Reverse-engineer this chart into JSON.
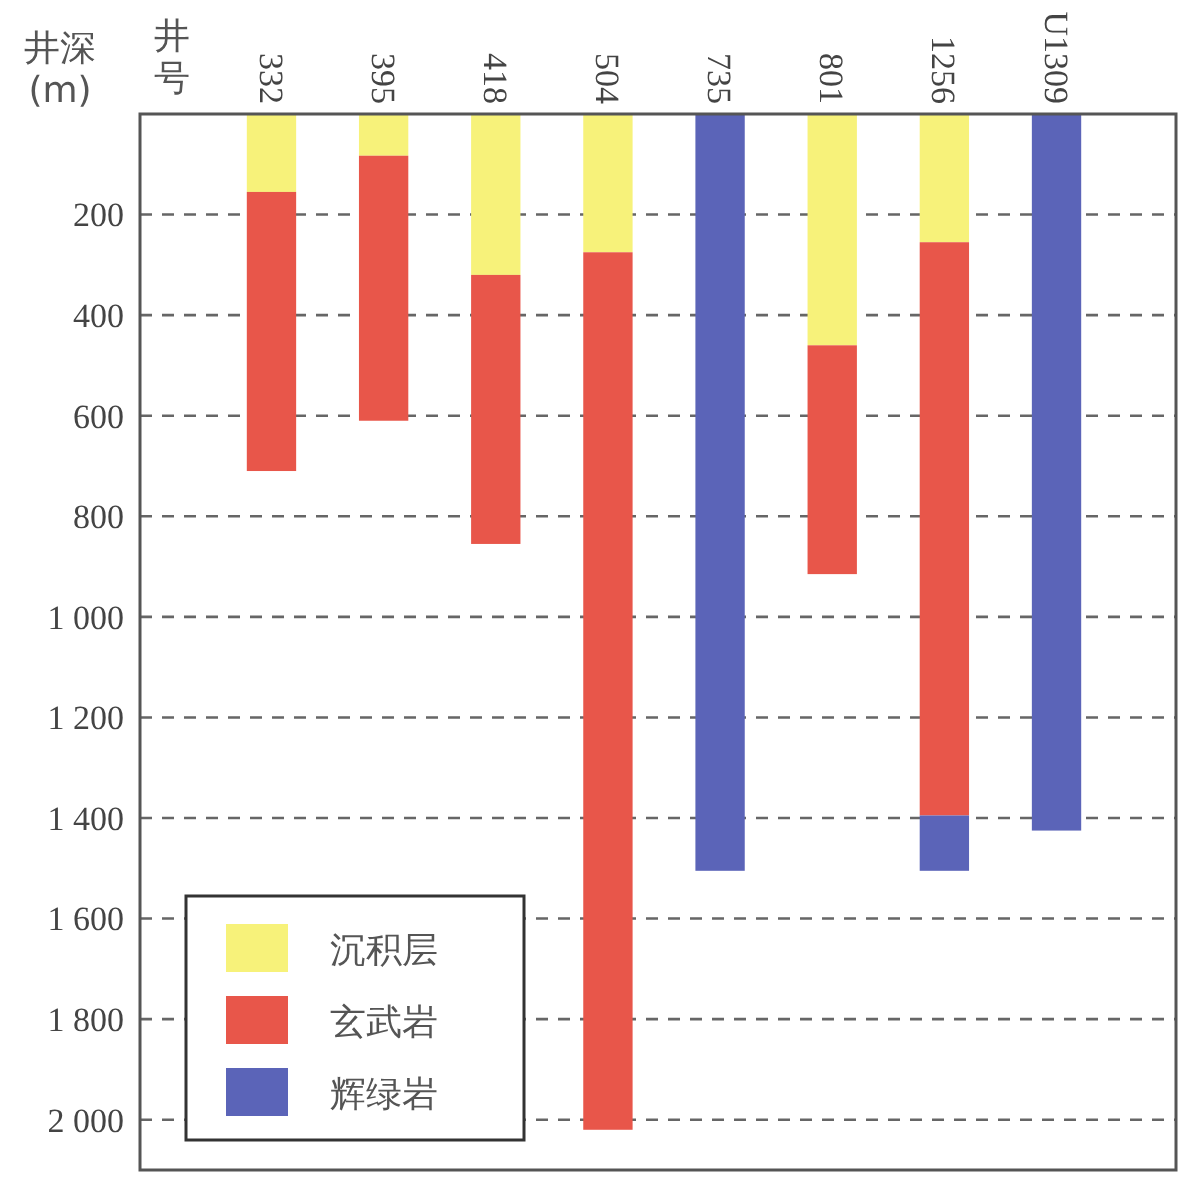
{
  "chart_data": {
    "type": "bar",
    "stacked": true,
    "xlabel": "井号",
    "ylabel": "井深\n(m)",
    "categories": [
      "332",
      "395",
      "418",
      "504",
      "735",
      "801",
      "1256",
      "U1309"
    ],
    "series": [
      {
        "name": "沉积层",
        "color": "#f7f27a",
        "values": [
          155,
          83,
          320,
          275,
          0,
          460,
          255,
          0
        ]
      },
      {
        "name": "玄武岩",
        "color": "#e8564a",
        "values": [
          555,
          527,
          535,
          1745,
          0,
          455,
          1140,
          0
        ]
      },
      {
        "name": "辉绿岩",
        "color": "#5b64b8",
        "values": [
          0,
          0,
          0,
          0,
          1505,
          0,
          110,
          1425
        ]
      }
    ],
    "ylim": [
      2100,
      0
    ],
    "yticks": [
      200,
      400,
      600,
      800,
      {
        "value": 1000,
        "label": "1 000"
      },
      {
        "value": 1200,
        "label": "1 200"
      },
      {
        "value": 1400,
        "label": "1 400"
      },
      {
        "value": 1600,
        "label": "1 600"
      },
      {
        "value": 1800,
        "label": "1 800"
      },
      {
        "value": 2000,
        "label": "2 000"
      }
    ],
    "grid": "y",
    "line_style": "dashed",
    "legend": "bottom left"
  }
}
